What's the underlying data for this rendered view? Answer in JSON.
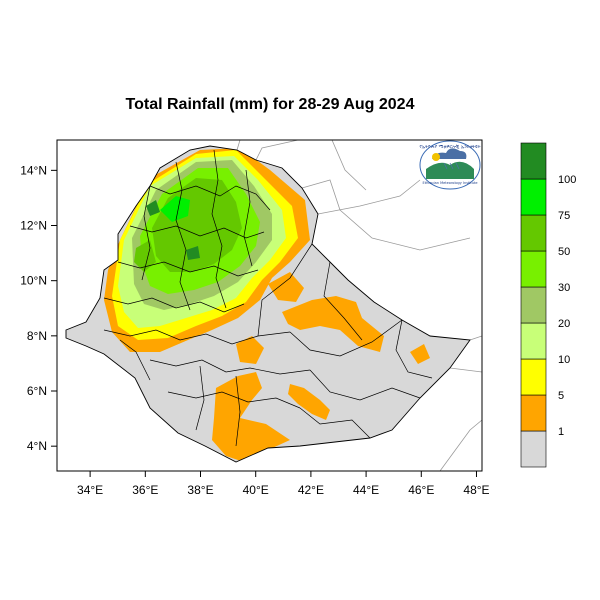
{
  "title": "Total Rainfall (mm) for 28-29 Aug 2024",
  "map": {
    "lon_range": [
      32.8,
      48.2
    ],
    "lat_range": [
      3.1,
      15.1
    ],
    "lon_ticks": [
      {
        "value": 34,
        "label": "34°E"
      },
      {
        "value": 36,
        "label": "36°E"
      },
      {
        "value": 38,
        "label": "38°E"
      },
      {
        "value": 40,
        "label": "40°E"
      },
      {
        "value": 42,
        "label": "42°E"
      },
      {
        "value": 44,
        "label": "44°E"
      },
      {
        "value": 46,
        "label": "46°E"
      },
      {
        "value": 48,
        "label": "48°E"
      }
    ],
    "lat_ticks": [
      {
        "value": 4,
        "label": "4°N"
      },
      {
        "value": 6,
        "label": "6°N"
      },
      {
        "value": 8,
        "label": "8°N"
      },
      {
        "value": 10,
        "label": "10°N"
      },
      {
        "value": 12,
        "label": "12°N"
      },
      {
        "value": 14,
        "label": "14°N"
      }
    ],
    "country": "Ethiopia",
    "logo": {
      "name": "ethiopian-meteorology-institute-logo",
      "text_top": "የኢትዮጵያ ሚቲዎሮሎጂ ኢንስቲትዩት",
      "text_bottom": "Ethiopian Meteorology Institute",
      "year": "1951"
    }
  },
  "legend": {
    "bins": [
      {
        "color": "#d8d8d8",
        "label": "1"
      },
      {
        "color": "#ffa500",
        "label": "5"
      },
      {
        "color": "#ffff00",
        "label": "10"
      },
      {
        "color": "#c8ff78",
        "label": "20"
      },
      {
        "color": "#a0c864",
        "label": "30"
      },
      {
        "color": "#78f000",
        "label": "50"
      },
      {
        "color": "#64c800",
        "label": "75"
      },
      {
        "color": "#00f000",
        "label": "100"
      },
      {
        "color": "#228b22",
        "label": ""
      }
    ]
  },
  "colors": {
    "no_rain": "#d8d8d8",
    "orange": "#ffa500",
    "yellow": "#ffff00",
    "light_green": "#c8ff78",
    "olive_green": "#a0c864",
    "bright_green": "#78f000",
    "green": "#64c800",
    "lime": "#00f000",
    "dark_green": "#228b22"
  }
}
